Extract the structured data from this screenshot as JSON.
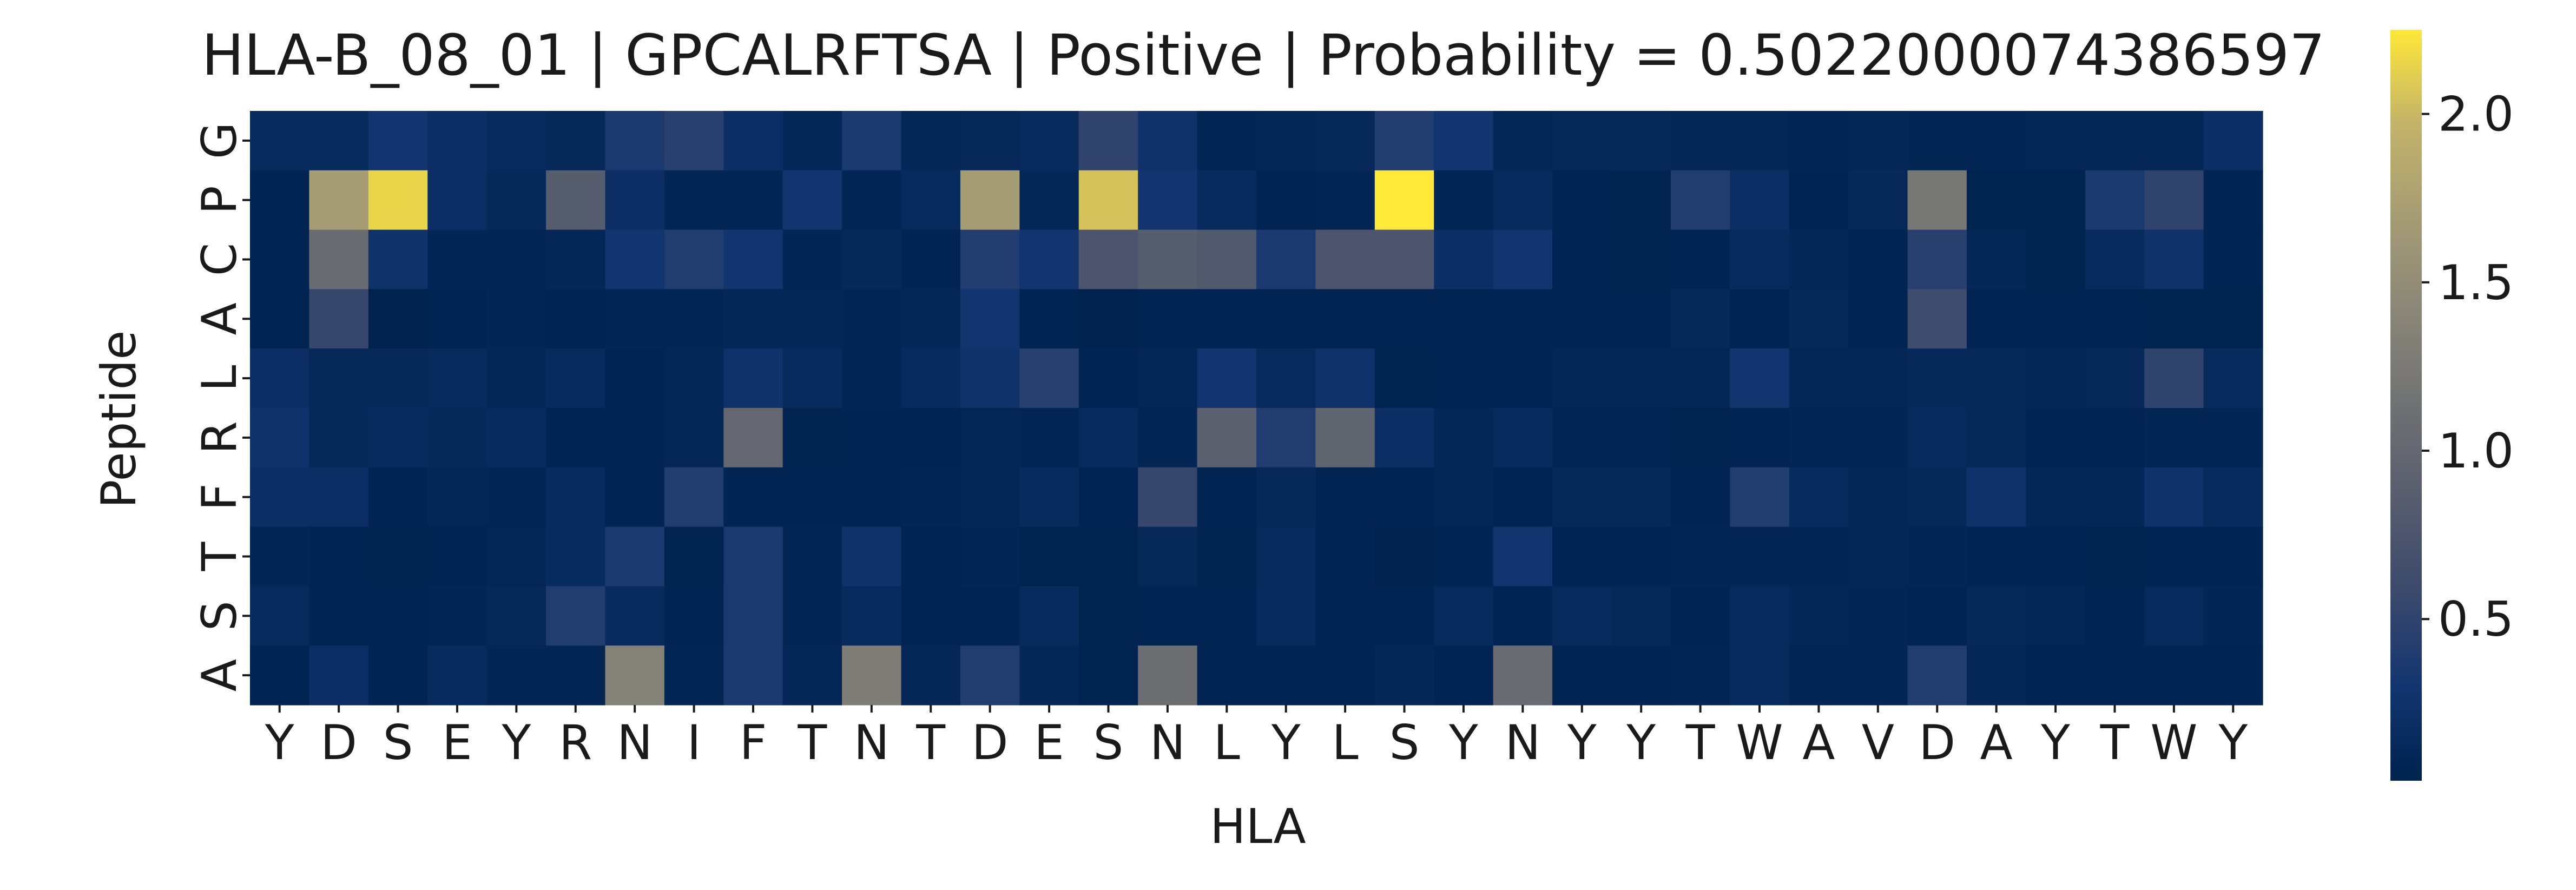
{
  "chart_data": {
    "type": "heatmap",
    "title": "HLA-B_08_01 | GPCALRFTSA | Positive | Probability = 0.5022000074386597",
    "xlabel": "HLA",
    "ylabel": "Peptide",
    "x_categories": [
      "Y",
      "D",
      "S",
      "E",
      "Y",
      "R",
      "N",
      "I",
      "F",
      "T",
      "N",
      "T",
      "D",
      "E",
      "S",
      "N",
      "L",
      "Y",
      "L",
      "S",
      "Y",
      "N",
      "Y",
      "Y",
      "T",
      "W",
      "A",
      "V",
      "D",
      "A",
      "Y",
      "T",
      "W",
      "Y"
    ],
    "y_categories": [
      "G",
      "P",
      "C",
      "A",
      "L",
      "R",
      "F",
      "T",
      "S",
      "A"
    ],
    "values": [
      [
        0.15,
        0.15,
        0.3,
        0.2,
        0.15,
        0.12,
        0.35,
        0.45,
        0.2,
        0.1,
        0.35,
        0.1,
        0.12,
        0.15,
        0.5,
        0.25,
        0.08,
        0.1,
        0.12,
        0.4,
        0.3,
        0.1,
        0.12,
        0.12,
        0.1,
        0.1,
        0.08,
        0.1,
        0.08,
        0.08,
        0.1,
        0.1,
        0.1,
        0.2
      ],
      [
        0.05,
        1.7,
        2.15,
        0.2,
        0.12,
        0.85,
        0.2,
        0.08,
        0.08,
        0.3,
        0.08,
        0.15,
        1.7,
        0.1,
        2.05,
        0.3,
        0.15,
        0.05,
        0.08,
        2.25,
        0.08,
        0.15,
        0.05,
        0.03,
        0.4,
        0.2,
        0.05,
        0.12,
        1.2,
        0.03,
        0.03,
        0.35,
        0.5,
        0.05
      ],
      [
        0.05,
        1.05,
        0.25,
        0.08,
        0.08,
        0.1,
        0.3,
        0.4,
        0.3,
        0.08,
        0.12,
        0.05,
        0.4,
        0.3,
        0.75,
        0.85,
        0.8,
        0.35,
        0.75,
        0.75,
        0.2,
        0.3,
        0.05,
        0.03,
        0.05,
        0.15,
        0.1,
        0.05,
        0.45,
        0.1,
        0.03,
        0.15,
        0.25,
        0.05
      ],
      [
        0.05,
        0.55,
        0.02,
        0.05,
        0.08,
        0.05,
        0.08,
        0.08,
        0.1,
        0.1,
        0.08,
        0.1,
        0.3,
        0.05,
        0.02,
        0.05,
        0.05,
        0.05,
        0.05,
        0.05,
        0.05,
        0.05,
        0.05,
        0.05,
        0.12,
        0.05,
        0.12,
        0.05,
        0.6,
        0.05,
        0.05,
        0.05,
        0.03,
        0.03
      ],
      [
        0.2,
        0.12,
        0.12,
        0.15,
        0.1,
        0.15,
        0.05,
        0.1,
        0.25,
        0.15,
        0.08,
        0.15,
        0.25,
        0.45,
        0.05,
        0.1,
        0.3,
        0.15,
        0.25,
        0.03,
        0.05,
        0.05,
        0.1,
        0.1,
        0.1,
        0.3,
        0.1,
        0.1,
        0.12,
        0.12,
        0.1,
        0.12,
        0.5,
        0.15
      ],
      [
        0.25,
        0.12,
        0.15,
        0.12,
        0.15,
        0.05,
        0.05,
        0.1,
        1.0,
        0.03,
        0.05,
        0.05,
        0.1,
        0.08,
        0.15,
        0.08,
        0.9,
        0.4,
        0.95,
        0.2,
        0.1,
        0.15,
        0.08,
        0.08,
        0.03,
        0.05,
        0.08,
        0.08,
        0.15,
        0.12,
        0.05,
        0.05,
        0.08,
        0.08
      ],
      [
        0.2,
        0.2,
        0.05,
        0.1,
        0.08,
        0.15,
        0.05,
        0.4,
        0.05,
        0.05,
        0.05,
        0.08,
        0.1,
        0.15,
        0.05,
        0.55,
        0.05,
        0.12,
        0.05,
        0.05,
        0.1,
        0.05,
        0.12,
        0.12,
        0.05,
        0.4,
        0.15,
        0.1,
        0.12,
        0.25,
        0.1,
        0.1,
        0.25,
        0.15
      ],
      [
        0.08,
        0.05,
        0.03,
        0.05,
        0.1,
        0.15,
        0.35,
        0.03,
        0.35,
        0.08,
        0.25,
        0.05,
        0.08,
        0.03,
        0.03,
        0.12,
        0.03,
        0.15,
        0.05,
        0.02,
        0.05,
        0.3,
        0.05,
        0.05,
        0.08,
        0.08,
        0.08,
        0.1,
        0.08,
        0.05,
        0.05,
        0.03,
        0.05,
        0.05
      ],
      [
        0.15,
        0.05,
        0.05,
        0.08,
        0.12,
        0.4,
        0.15,
        0.05,
        0.35,
        0.08,
        0.15,
        0.05,
        0.05,
        0.15,
        0.03,
        0.05,
        0.05,
        0.15,
        0.05,
        0.05,
        0.15,
        0.05,
        0.15,
        0.12,
        0.05,
        0.15,
        0.1,
        0.08,
        0.05,
        0.12,
        0.1,
        0.05,
        0.15,
        0.08
      ],
      [
        0.05,
        0.2,
        0.05,
        0.15,
        0.08,
        0.08,
        1.35,
        0.08,
        0.35,
        0.1,
        1.3,
        0.1,
        0.4,
        0.1,
        0.03,
        1.1,
        0.05,
        0.05,
        0.05,
        0.1,
        0.05,
        1.05,
        0.05,
        0.05,
        0.08,
        0.15,
        0.08,
        0.08,
        0.4,
        0.1,
        0.05,
        0.05,
        0.05,
        0.05
      ]
    ],
    "colorbar": {
      "colormap": "cividis",
      "min": 0.02,
      "max": 2.25,
      "ticks": [
        "0.5",
        "1.0",
        "1.5",
        "2.0"
      ]
    },
    "grid": false,
    "legend": "colorbar-right"
  }
}
